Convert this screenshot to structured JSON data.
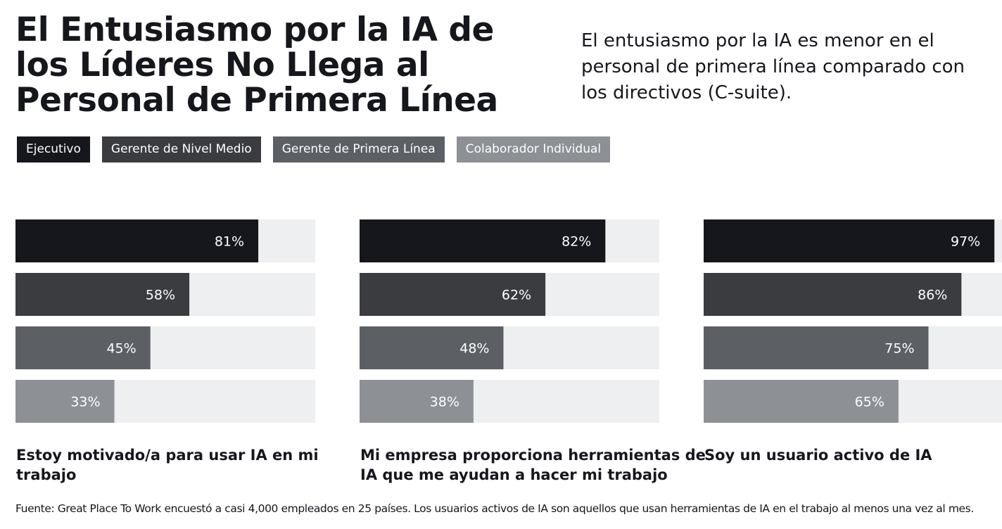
{
  "title": "El Entusiasmo por la IA de los Líderes No Llega al Personal de Primera Línea",
  "subtitle": "El entusiasmo por la IA es menor en el personal de primera línea comparado con los directivos (C-suite).",
  "footer": "Fuente: Great Place To Work encuestó a casi 4,000 empleados en 25 países. Los usuarios activos de IA son aquellos que usan herramientas de IA en el trabajo al menos una vez al mes.",
  "colors": {
    "Ejecutivo": "#15171c",
    "Gerente de Nivel Medio": "#3a3c40",
    "Gerente de Primera Línea": "#5c6065",
    "Colaborador Individual": "#8d9195",
    "track": "#eeeff0"
  },
  "chart_data": {
    "type": "bar",
    "orientation": "horizontal",
    "xlim": [
      0,
      100
    ],
    "grid": false,
    "legend_placement": "top-left",
    "series_names": [
      "Ejecutivo",
      "Gerente de Nivel Medio",
      "Gerente de Primera Línea",
      "Colaborador Individual"
    ],
    "panels": [
      {
        "label": "Estoy motivado/a para usar IA en mi trabajo",
        "values": [
          81,
          58,
          45,
          33
        ],
        "labels": [
          "81%",
          "58%",
          "45%",
          "33%"
        ]
      },
      {
        "label": "Mi empresa proporciona herramientas de IA que me ayudan a hacer mi trabajo",
        "values": [
          82,
          62,
          48,
          38
        ],
        "labels": [
          "82%",
          "62%",
          "48%",
          "38%"
        ]
      },
      {
        "label": "Soy un usuario activo de IA",
        "values": [
          97,
          86,
          75,
          65
        ],
        "labels": [
          "97%",
          "86%",
          "75%",
          "65%"
        ]
      }
    ]
  }
}
